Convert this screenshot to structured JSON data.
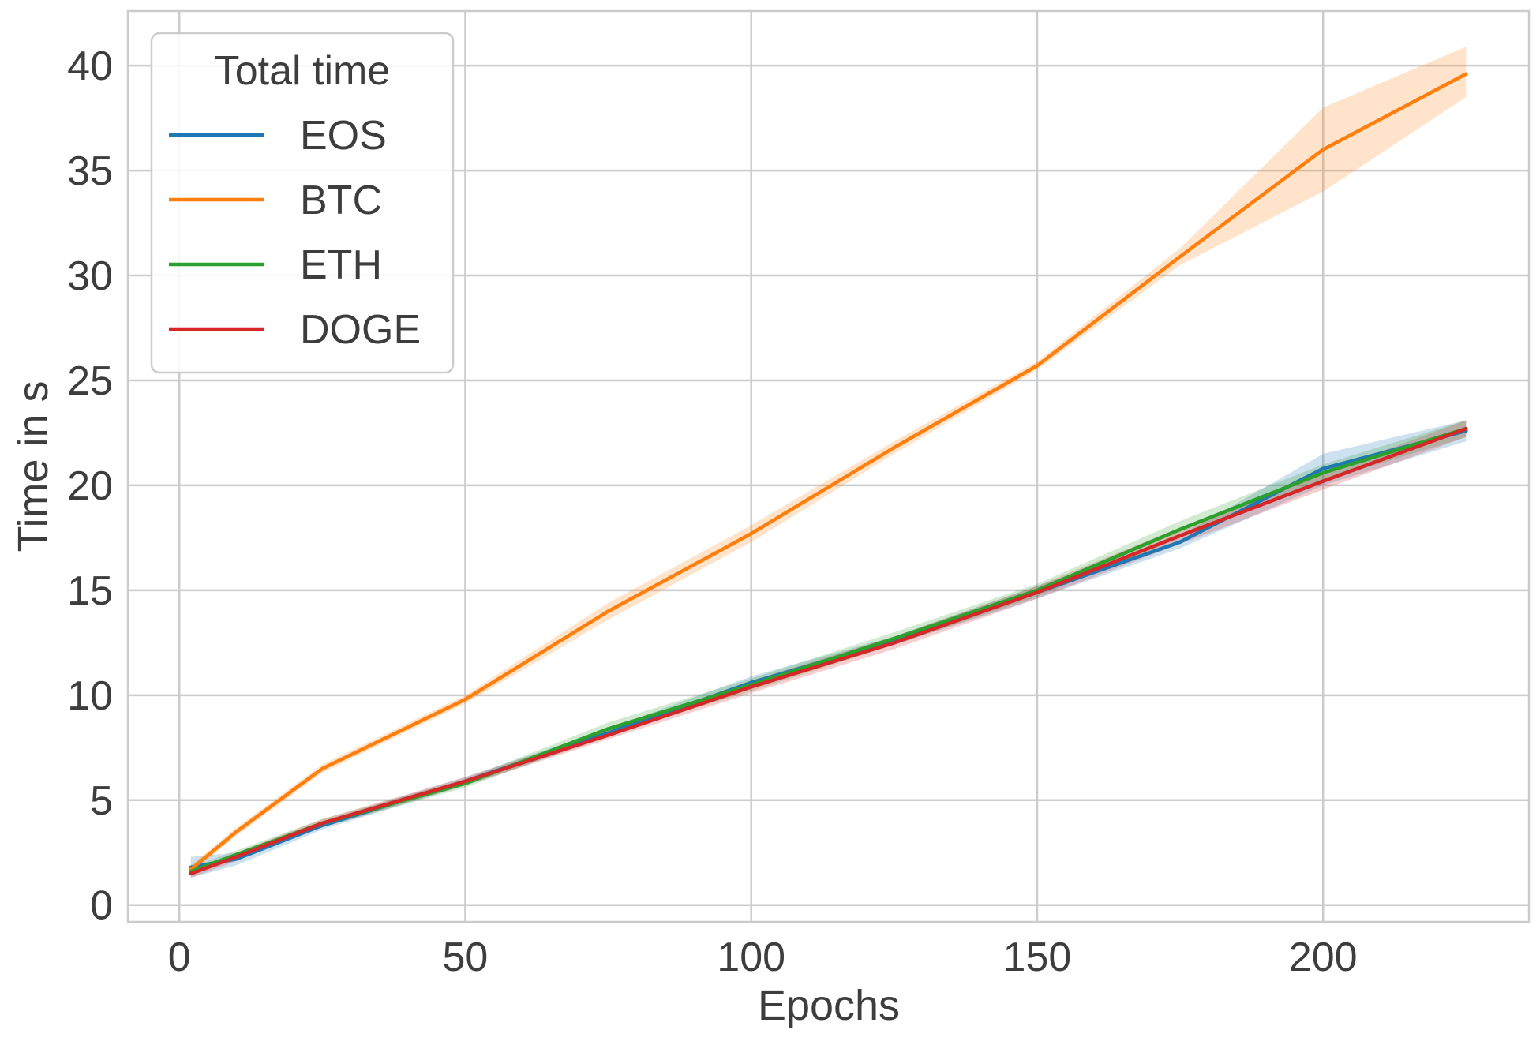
{
  "chart_data": {
    "type": "line",
    "title": "",
    "xlabel": "Epochs",
    "ylabel": "Time in s",
    "xlim": [
      -9,
      236
    ],
    "ylim": [
      -0.8,
      42.6
    ],
    "x_ticks": [
      0,
      50,
      100,
      150,
      200
    ],
    "y_ticks": [
      0,
      5,
      10,
      15,
      20,
      25,
      30,
      35,
      40
    ],
    "grid": true,
    "legend": {
      "title": "Total time",
      "placement": "top-left"
    },
    "x": [
      2,
      10,
      25,
      50,
      75,
      100,
      125,
      150,
      175,
      200,
      225
    ],
    "series": [
      {
        "name": "EOS",
        "color": "#1f77b4",
        "values": [
          1.8,
          2.2,
          3.8,
          5.9,
          8.2,
          10.6,
          12.6,
          14.9,
          17.3,
          20.8,
          22.6
        ],
        "lower": [
          1.3,
          1.9,
          3.6,
          5.7,
          8.0,
          10.3,
          12.4,
          14.6,
          17.0,
          20.0,
          22.1
        ],
        "upper": [
          2.3,
          2.5,
          4.0,
          6.1,
          8.4,
          10.9,
          12.8,
          15.2,
          17.6,
          21.5,
          23.1
        ]
      },
      {
        "name": "BTC",
        "color": "#ff7f0e",
        "values": [
          1.7,
          3.5,
          6.5,
          9.8,
          14.0,
          17.7,
          21.8,
          25.7,
          30.9,
          36.0,
          39.6
        ],
        "lower": [
          1.5,
          3.3,
          6.3,
          9.6,
          13.6,
          17.3,
          21.5,
          25.5,
          30.5,
          34.0,
          38.5
        ],
        "upper": [
          1.9,
          3.7,
          6.7,
          10.0,
          14.4,
          18.1,
          22.1,
          25.9,
          31.3,
          38.0,
          40.9
        ]
      },
      {
        "name": "ETH",
        "color": "#2ca02c",
        "values": [
          1.6,
          2.4,
          3.9,
          5.8,
          8.4,
          10.5,
          12.7,
          15.0,
          17.9,
          20.6,
          22.7
        ],
        "lower": [
          1.4,
          2.2,
          3.7,
          5.6,
          8.1,
          10.2,
          12.4,
          14.7,
          17.5,
          20.2,
          22.3
        ],
        "upper": [
          1.8,
          2.6,
          4.1,
          6.0,
          8.7,
          10.8,
          13.0,
          15.3,
          18.3,
          21.0,
          23.1
        ]
      },
      {
        "name": "DOGE",
        "color": "#d62728",
        "values": [
          1.5,
          2.3,
          3.9,
          5.9,
          8.1,
          10.4,
          12.5,
          14.9,
          17.6,
          20.2,
          22.7
        ],
        "lower": [
          1.3,
          2.1,
          3.7,
          5.7,
          7.9,
          10.1,
          12.2,
          14.6,
          17.2,
          19.8,
          22.3
        ],
        "upper": [
          1.7,
          2.5,
          4.1,
          6.1,
          8.3,
          10.7,
          12.8,
          15.2,
          18.0,
          20.6,
          23.1
        ]
      }
    ]
  }
}
